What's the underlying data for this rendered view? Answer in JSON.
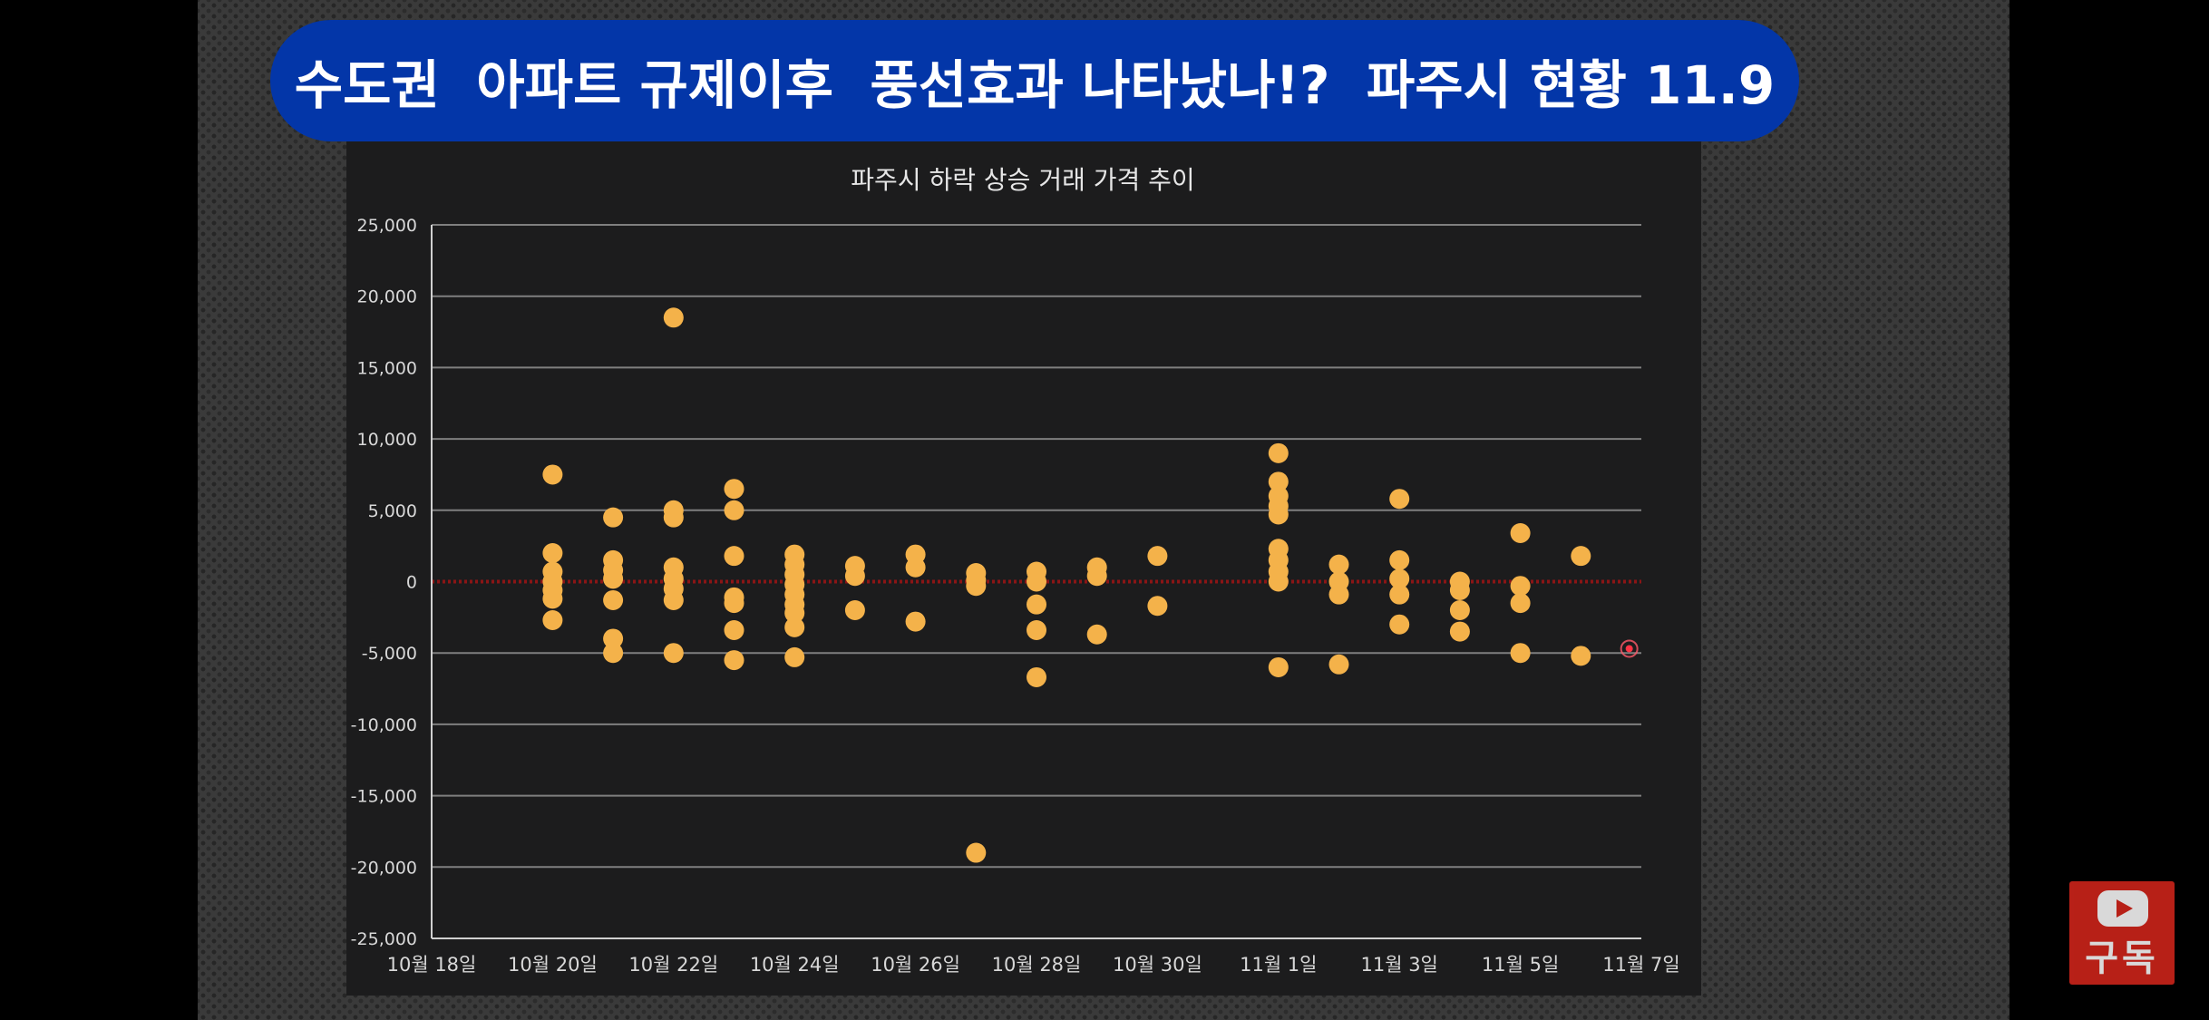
{
  "banner": {
    "title": "수도권  아파트 규제이후  풍선효과 나타났나!?  파주시 현황 11.9"
  },
  "subscribe": {
    "label": "구독",
    "icon": "youtube-play-icon"
  },
  "colors": {
    "banner": "#0336a8",
    "panel": "#1c1c1d",
    "points": "#f4b24a",
    "zero_line": "#8b1515",
    "grid": "#a0a0a0"
  },
  "chart_data": {
    "type": "scatter",
    "title": "파주시 하락 상승 거래 가격 추이",
    "xlabel": "",
    "ylabel": "",
    "x_ticks": [
      "10월 18일",
      "10월 20일",
      "10월 22일",
      "10월 24일",
      "10월 26일",
      "10월 28일",
      "10월 30일",
      "11월 1일",
      "11월 3일",
      "11월 5일",
      "11월 7일"
    ],
    "xlim": [
      "10월 18일",
      "11월 7일"
    ],
    "ylim": [
      -25000,
      25000
    ],
    "y_ticks": [
      25000,
      20000,
      15000,
      10000,
      5000,
      0,
      -5000,
      -10000,
      -15000,
      -20000,
      -25000
    ],
    "y_tick_labels": [
      "25,000",
      "20,000",
      "15,000",
      "10,000",
      "5,000",
      "0",
      "-5,000",
      "-10,000",
      "-15,000",
      "-20,000",
      "-25,000"
    ],
    "grid": true,
    "reference_line": 0,
    "series": [
      {
        "points": [
          {
            "x": "10월 20일",
            "y": 7500
          },
          {
            "x": "10월 20일",
            "y": 2000
          },
          {
            "x": "10월 20일",
            "y": 700
          },
          {
            "x": "10월 20일",
            "y": 0
          },
          {
            "x": "10월 20일",
            "y": -600
          },
          {
            "x": "10월 20일",
            "y": -1200
          },
          {
            "x": "10월 20일",
            "y": -2700
          },
          {
            "x": "10월 21일",
            "y": 4500
          },
          {
            "x": "10월 21일",
            "y": 1500
          },
          {
            "x": "10월 21일",
            "y": 800
          },
          {
            "x": "10월 21일",
            "y": 200
          },
          {
            "x": "10월 21일",
            "y": -1300
          },
          {
            "x": "10월 21일",
            "y": -4000
          },
          {
            "x": "10월 21일",
            "y": -5000
          },
          {
            "x": "10월 22일",
            "y": 18500
          },
          {
            "x": "10월 22일",
            "y": 5000
          },
          {
            "x": "10월 22일",
            "y": 4500
          },
          {
            "x": "10월 22일",
            "y": 1000
          },
          {
            "x": "10월 22일",
            "y": 200
          },
          {
            "x": "10월 22일",
            "y": -500
          },
          {
            "x": "10월 22일",
            "y": -1300
          },
          {
            "x": "10월 22일",
            "y": -5000
          },
          {
            "x": "10월 23일",
            "y": 6500
          },
          {
            "x": "10월 23일",
            "y": 5000
          },
          {
            "x": "10월 23일",
            "y": 1800
          },
          {
            "x": "10월 23일",
            "y": -1100
          },
          {
            "x": "10월 23일",
            "y": -1500
          },
          {
            "x": "10월 23일",
            "y": -3400
          },
          {
            "x": "10월 23일",
            "y": -5500
          },
          {
            "x": "10월 24일",
            "y": 1900
          },
          {
            "x": "10월 24일",
            "y": 1200
          },
          {
            "x": "10월 24일",
            "y": 500
          },
          {
            "x": "10월 24일",
            "y": -200
          },
          {
            "x": "10월 24일",
            "y": -900
          },
          {
            "x": "10월 24일",
            "y": -1600
          },
          {
            "x": "10월 24일",
            "y": -2200
          },
          {
            "x": "10월 24일",
            "y": -3200
          },
          {
            "x": "10월 24일",
            "y": -5300
          },
          {
            "x": "10월 25일",
            "y": 1100
          },
          {
            "x": "10월 25일",
            "y": 400
          },
          {
            "x": "10월 25일",
            "y": -2000
          },
          {
            "x": "10월 26일",
            "y": 1900
          },
          {
            "x": "10월 26일",
            "y": 1000
          },
          {
            "x": "10월 26일",
            "y": -2800
          },
          {
            "x": "10월 27일",
            "y": 600
          },
          {
            "x": "10월 27일",
            "y": 100
          },
          {
            "x": "10월 27일",
            "y": -300
          },
          {
            "x": "10월 27일",
            "y": -19000
          },
          {
            "x": "10월 28일",
            "y": 700
          },
          {
            "x": "10월 28일",
            "y": 0
          },
          {
            "x": "10월 28일",
            "y": -1600
          },
          {
            "x": "10월 28일",
            "y": -3400
          },
          {
            "x": "10월 28일",
            "y": -6700
          },
          {
            "x": "10월 29일",
            "y": 1000
          },
          {
            "x": "10월 29일",
            "y": 400
          },
          {
            "x": "10월 29일",
            "y": -3700
          },
          {
            "x": "10월 30일",
            "y": 1800
          },
          {
            "x": "10월 30일",
            "y": -1700
          },
          {
            "x": "11월 1일",
            "y": 9000
          },
          {
            "x": "11월 1일",
            "y": 7000
          },
          {
            "x": "11월 1일",
            "y": 6000
          },
          {
            "x": "11월 1일",
            "y": 5300
          },
          {
            "x": "11월 1일",
            "y": 4700
          },
          {
            "x": "11월 1일",
            "y": 2300
          },
          {
            "x": "11월 1일",
            "y": 1500
          },
          {
            "x": "11월 1일",
            "y": 700
          },
          {
            "x": "11월 1일",
            "y": 0
          },
          {
            "x": "11월 1일",
            "y": -6000
          },
          {
            "x": "11월 2일",
            "y": 1200
          },
          {
            "x": "11월 2일",
            "y": 0
          },
          {
            "x": "11월 2일",
            "y": -900
          },
          {
            "x": "11월 2일",
            "y": -5800
          },
          {
            "x": "11월 3일",
            "y": 5800
          },
          {
            "x": "11월 3일",
            "y": 1500
          },
          {
            "x": "11월 3일",
            "y": 200
          },
          {
            "x": "11월 3일",
            "y": -900
          },
          {
            "x": "11월 3일",
            "y": -3000
          },
          {
            "x": "11월 4일",
            "y": 0
          },
          {
            "x": "11월 4일",
            "y": -600
          },
          {
            "x": "11월 4일",
            "y": -2000
          },
          {
            "x": "11월 4일",
            "y": -3500
          },
          {
            "x": "11월 5일",
            "y": 3400
          },
          {
            "x": "11월 5일",
            "y": -300
          },
          {
            "x": "11월 5일",
            "y": -1500
          },
          {
            "x": "11월 5일",
            "y": -5000
          },
          {
            "x": "11월 6일",
            "y": 1800
          },
          {
            "x": "11월 6일",
            "y": -5200
          }
        ]
      }
    ]
  }
}
